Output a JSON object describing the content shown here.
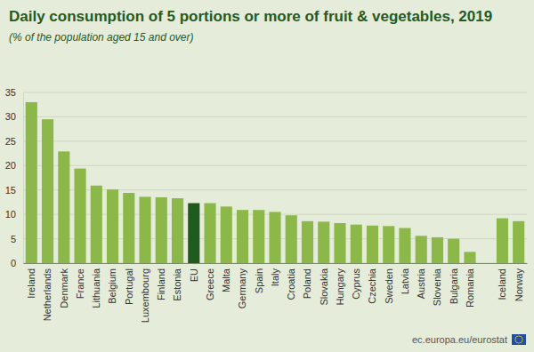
{
  "chart_data": {
    "type": "bar",
    "title": "Daily consumption of 5 portions or more of fruit & vegetables, 2019",
    "subtitle": "(% of the population aged 15 and over)",
    "source": "ec.europa.eu/eurostat",
    "categories": [
      "Ireland",
      "Netherlands",
      "Denmark",
      "France",
      "Lithuania",
      "Belgium",
      "Portugal",
      "Luxembourg",
      "Finland",
      "Estonia",
      "EU",
      "Greece",
      "Malta",
      "Germany",
      "Spain",
      "Italy",
      "Croatia",
      "Poland",
      "Slovakia",
      "Hungary",
      "Cyprus",
      "Czechia",
      "Sweden",
      "Latvia",
      "Austria",
      "Slovenia",
      "Bulgaria",
      "Romania",
      null,
      "Iceland",
      "Norway"
    ],
    "values": [
      33.0,
      29.5,
      22.9,
      19.4,
      15.9,
      15.1,
      14.4,
      13.6,
      13.5,
      13.3,
      12.3,
      12.3,
      11.6,
      10.9,
      10.9,
      10.5,
      9.8,
      8.6,
      8.5,
      8.2,
      7.9,
      7.7,
      7.6,
      7.2,
      5.6,
      5.3,
      5.0,
      2.3,
      null,
      9.2,
      8.6
    ],
    "colors": [
      "#8cb84a",
      "#8cb84a",
      "#8cb84a",
      "#8cb84a",
      "#8cb84a",
      "#8cb84a",
      "#8cb84a",
      "#8cb84a",
      "#8cb84a",
      "#8cb84a",
      "#1f5a1f",
      "#8cb84a",
      "#8cb84a",
      "#8cb84a",
      "#8cb84a",
      "#8cb84a",
      "#8cb84a",
      "#8cb84a",
      "#8cb84a",
      "#8cb84a",
      "#8cb84a",
      "#8cb84a",
      "#8cb84a",
      "#8cb84a",
      "#8cb84a",
      "#8cb84a",
      "#8cb84a",
      "#8cb84a",
      null,
      "#8cb84a",
      "#8cb84a"
    ],
    "ylim": [
      0,
      35
    ],
    "yticks": [
      0,
      5,
      10,
      15,
      20,
      25,
      30,
      35
    ],
    "grid": true
  }
}
